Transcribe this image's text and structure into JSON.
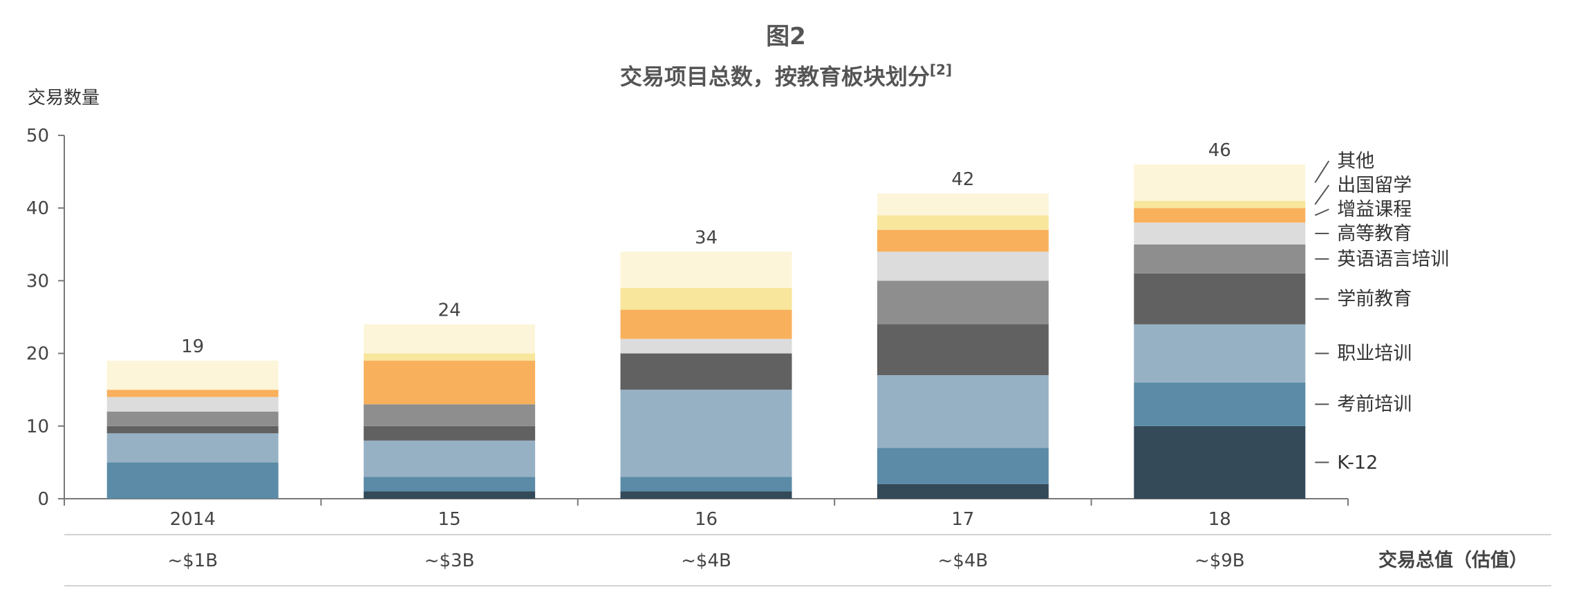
{
  "title": "图2",
  "subtitle": "交易项目总数，按教育板块划分",
  "subtitle_sup": "[2]",
  "ylabel": "交易数量",
  "deal_value_label": "交易总值（估值）",
  "deal_values": [
    "~$1B",
    "~$3B",
    "~$4B",
    "~$4B",
    "~$9B"
  ],
  "chart_data": {
    "type": "bar",
    "stacked": true,
    "categories": [
      "2014",
      "15",
      "16",
      "17",
      "18"
    ],
    "ylim": [
      0,
      50
    ],
    "yticks": [
      0,
      10,
      20,
      30,
      40,
      50
    ],
    "totals": [
      19,
      24,
      34,
      42,
      46
    ],
    "series": [
      {
        "name": "K-12",
        "color": "#344a59",
        "values": [
          0,
          1,
          1,
          2,
          10
        ]
      },
      {
        "name": "考前培训",
        "color": "#5b8ba6",
        "values": [
          5,
          2,
          2,
          5,
          6
        ]
      },
      {
        "name": "职业培训",
        "color": "#97b1c4",
        "values": [
          4,
          5,
          12,
          10,
          8
        ]
      },
      {
        "name": "学前教育",
        "color": "#616161",
        "values": [
          1,
          2,
          5,
          7,
          7
        ]
      },
      {
        "name": "英语语言培训",
        "color": "#8e8e8e",
        "values": [
          2,
          3,
          0,
          6,
          4
        ]
      },
      {
        "name": "高等教育",
        "color": "#dcdcdc",
        "values": [
          2,
          0,
          2,
          4,
          3
        ]
      },
      {
        "name": "增益课程",
        "color": "#f9b05c",
        "values": [
          1,
          6,
          4,
          3,
          2
        ]
      },
      {
        "name": "出国留学",
        "color": "#f7e69c",
        "values": [
          0,
          1,
          3,
          2,
          1
        ]
      },
      {
        "name": "其他",
        "color": "#fcf5da",
        "values": [
          4,
          4,
          5,
          3,
          5
        ]
      }
    ]
  }
}
